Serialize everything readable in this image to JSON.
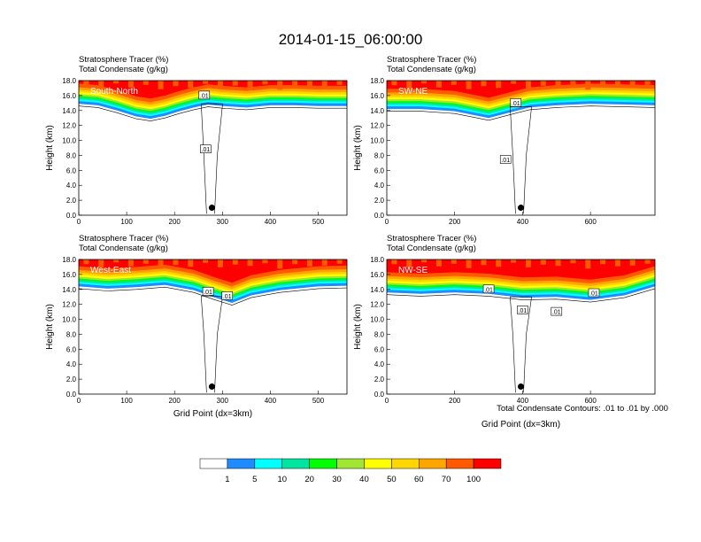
{
  "figure": {
    "title": "2014-01-15_06:00:00",
    "contour_note": "Total Condensate Contours: .01 to .01 by .000"
  },
  "colors": {
    "scale": [
      "#ffffff",
      "#1e8cff",
      "#00ffff",
      "#00e6a0",
      "#00ff00",
      "#a0e632",
      "#ffff00",
      "#ffd700",
      "#ffa500",
      "#ff5a00",
      "#ff0000"
    ]
  },
  "colorbar": {
    "labels": [
      "1",
      "5",
      "10",
      "20",
      "30",
      "40",
      "50",
      "60",
      "70",
      "100"
    ]
  },
  "chart_data": [
    {
      "type": "heatmap",
      "panel_label": "South-North",
      "subtitle_lines": [
        "Stratosphere Tracer   (%)",
        "Total Condensate   (g/kg)"
      ],
      "ylabel": "Height (km)",
      "xlabel": "",
      "xlim": [
        0,
        560
      ],
      "ylim": [
        0,
        18
      ],
      "xticks": [
        "0",
        "100",
        "200",
        "300",
        "400",
        "500"
      ],
      "yticks": [
        "0.0",
        "2.0",
        "4.0",
        "6.0",
        "8.0",
        "10.0",
        "12.0",
        "14.0",
        "16.0",
        "18.0"
      ],
      "tropopause_km": [
        [
          0,
          15.5
        ],
        [
          40,
          15.3
        ],
        [
          80,
          14.6
        ],
        [
          120,
          13.8
        ],
        [
          150,
          13.5
        ],
        [
          180,
          13.9
        ],
        [
          210,
          14.5
        ],
        [
          240,
          15.0
        ],
        [
          270,
          15.4
        ],
        [
          300,
          15.2
        ],
        [
          350,
          15.0
        ],
        [
          400,
          15.3
        ],
        [
          450,
          15.3
        ],
        [
          500,
          15.2
        ],
        [
          560,
          15.2
        ]
      ],
      "contour_labels": [
        ".01",
        ".01"
      ],
      "marker": [
        278,
        1.0
      ]
    },
    {
      "type": "heatmap",
      "panel_label": "SW-NE",
      "subtitle_lines": [
        "Stratosphere Tracer   (%)",
        "Total Condensate   (g/kg)"
      ],
      "ylabel": "Height (km)",
      "xlabel": "",
      "xlim": [
        0,
        790
      ],
      "ylim": [
        0,
        18
      ],
      "xticks": [
        "0",
        "200",
        "400",
        "600"
      ],
      "yticks": [
        "0.0",
        "2.0",
        "4.0",
        "6.0",
        "8.0",
        "10.0",
        "12.0",
        "14.0",
        "16.0",
        "18.0"
      ],
      "tropopause_km": [
        [
          0,
          14.8
        ],
        [
          100,
          14.8
        ],
        [
          200,
          14.5
        ],
        [
          300,
          13.6
        ],
        [
          360,
          14.3
        ],
        [
          420,
          15.0
        ],
        [
          500,
          15.3
        ],
        [
          600,
          15.5
        ],
        [
          700,
          15.4
        ],
        [
          790,
          15.3
        ]
      ],
      "contour_labels": [
        ".01",
        ".01"
      ],
      "marker": [
        395,
        1.0
      ]
    },
    {
      "type": "heatmap",
      "panel_label": "West-East",
      "subtitle_lines": [
        "Stratosphere Tracer   (%)",
        "Total Condensate   (g/kg)"
      ],
      "ylabel": "Height (km)",
      "xlabel": "Grid Point (dx=3km)",
      "xlim": [
        0,
        560
      ],
      "ylim": [
        0,
        18
      ],
      "xticks": [
        "0",
        "100",
        "200",
        "300",
        "400",
        "500"
      ],
      "yticks": [
        "0.0",
        "2.0",
        "4.0",
        "6.0",
        "8.0",
        "10.0",
        "12.0",
        "14.0",
        "16.0",
        "18.0"
      ],
      "tropopause_km": [
        [
          0,
          15.0
        ],
        [
          60,
          14.7
        ],
        [
          120,
          14.9
        ],
        [
          180,
          15.2
        ],
        [
          240,
          14.5
        ],
        [
          280,
          13.6
        ],
        [
          320,
          12.8
        ],
        [
          360,
          13.8
        ],
        [
          420,
          14.5
        ],
        [
          500,
          15.0
        ],
        [
          560,
          15.1
        ]
      ],
      "contour_labels": [
        ".01",
        ".01"
      ],
      "marker": [
        278,
        1.0
      ]
    },
    {
      "type": "heatmap",
      "panel_label": "NW-SE",
      "subtitle_lines": [
        "Stratosphere Tracer   (%)",
        "Total Condensate   (g/kg)"
      ],
      "ylabel": "Height (km)",
      "xlabel": "Grid Point (dx=3km)",
      "xlim": [
        0,
        790
      ],
      "ylim": [
        0,
        18
      ],
      "xticks": [
        "0",
        "200",
        "400",
        "600"
      ],
      "yticks": [
        "0.0",
        "2.0",
        "4.0",
        "6.0",
        "8.0",
        "10.0",
        "12.0",
        "14.0",
        "16.0",
        "18.0"
      ],
      "tropopause_km": [
        [
          0,
          14.2
        ],
        [
          100,
          14.0
        ],
        [
          200,
          14.2
        ],
        [
          300,
          14.0
        ],
        [
          400,
          13.5
        ],
        [
          500,
          13.6
        ],
        [
          600,
          13.2
        ],
        [
          700,
          13.8
        ],
        [
          790,
          15.0
        ]
      ],
      "contour_labels": [
        ".01",
        ".01",
        ".01",
        ".01"
      ],
      "marker": [
        395,
        1.0
      ]
    }
  ]
}
